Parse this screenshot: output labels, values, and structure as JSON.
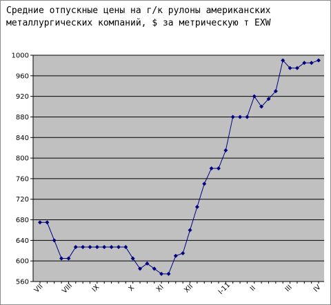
{
  "chart_data": {
    "type": "line",
    "title_lines": [
      "Средние отпускные цены на г/к рулоны американских",
      "металлургических компаний, $ за метрическую т EXW"
    ],
    "xlabel": "",
    "ylabel": "",
    "ylim": [
      560,
      1000
    ],
    "yticks": [
      560,
      600,
      640,
      680,
      720,
      760,
      800,
      840,
      880,
      920,
      960,
      1000
    ],
    "grid": true,
    "legend": "none",
    "x_tick_labels": [
      {
        "label": "VII",
        "index": 0
      },
      {
        "label": "VIII",
        "index": 4
      },
      {
        "label": "IX",
        "index": 8
      },
      {
        "label": "X",
        "index": 13
      },
      {
        "label": "XI",
        "index": 17
      },
      {
        "label": "XII",
        "index": 21
      },
      {
        "label": "I-11",
        "index": 26
      },
      {
        "label": "II",
        "index": 30
      },
      {
        "label": "III",
        "index": 35
      },
      {
        "label": "IV",
        "index": 39
      }
    ],
    "series": [
      {
        "values": [
          675,
          675,
          640,
          605,
          605,
          627,
          627,
          627,
          627,
          627,
          627,
          627,
          627,
          605,
          585,
          595,
          585,
          575,
          575,
          610,
          615,
          660,
          705,
          750,
          780,
          780,
          815,
          880,
          880,
          880,
          920,
          900,
          915,
          930,
          990,
          975,
          975,
          985,
          985,
          990
        ]
      }
    ],
    "colors": {
      "line": "#000080",
      "plot_background": "#c0c0c0",
      "gridline": "#000000"
    }
  }
}
